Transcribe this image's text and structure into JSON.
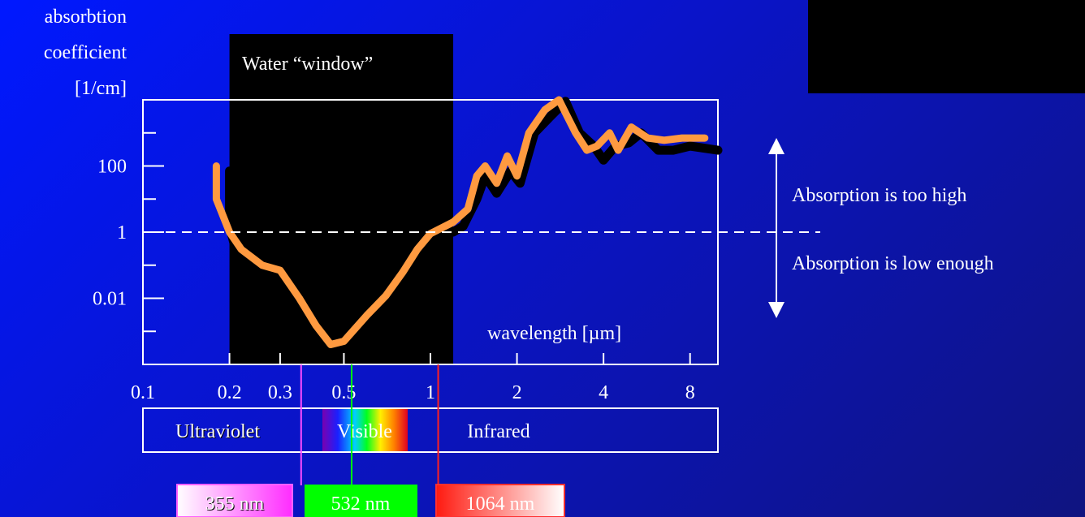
{
  "chart_data": {
    "type": "line",
    "ylabel_lines": [
      "absorbtion",
      "coefficient",
      "[1/cm]"
    ],
    "xlabel": "wavelength [µm]",
    "x_scale": "log",
    "y_scale": "log",
    "xlim": [
      0.1,
      10
    ],
    "ylim": [
      0.0001,
      10000
    ],
    "x_tick_labels": [
      {
        "value": 0.1,
        "label": "0.1"
      },
      {
        "value": 0.2,
        "label": "0.2"
      },
      {
        "value": 0.3,
        "label": "0.3"
      },
      {
        "value": 0.5,
        "label": "0.5"
      },
      {
        "value": 1,
        "label": "1"
      },
      {
        "value": 2,
        "label": "2"
      },
      {
        "value": 4,
        "label": "4"
      },
      {
        "value": 8,
        "label": "8"
      }
    ],
    "y_tick_labels": [
      {
        "value": 100,
        "label": "100"
      },
      {
        "value": 1,
        "label": "1"
      },
      {
        "value": 0.01,
        "label": "0.01"
      }
    ],
    "y_minor_ticks": [
      1000,
      10,
      0.1,
      0.001
    ],
    "threshold_y": 1,
    "window": {
      "label": "Water “window”",
      "x_start": 0.2,
      "x_end": 1.2
    },
    "series": [
      {
        "color": "#000000",
        "x": [
          0.2,
          0.2,
          0.21,
          0.25,
          0.3,
          0.35,
          0.4,
          0.45,
          0.5,
          0.6,
          0.7,
          0.8,
          0.9,
          1.0,
          1.2,
          1.3,
          1.45,
          1.55,
          1.7,
          1.9,
          2.05,
          2.3,
          2.6,
          2.95,
          3.3,
          3.7,
          4.0,
          4.4,
          4.9,
          5.4,
          6.2,
          7.0,
          8.0,
          10.0
        ],
        "y": [
          70,
          1.5,
          0.3,
          0.2,
          0.07,
          0.01,
          0.0015,
          0.0004,
          0.0005,
          0.003,
          0.012,
          0.06,
          0.3,
          0.9,
          1.0,
          1.5,
          10,
          50,
          15,
          70,
          30,
          1000,
          3000,
          9000,
          1000,
          400,
          150,
          400,
          500,
          1000,
          300,
          300,
          400,
          300
        ]
      },
      {
        "color": "#ff9a40",
        "x": [
          0.18,
          0.18,
          0.2,
          0.22,
          0.26,
          0.3,
          0.35,
          0.4,
          0.45,
          0.5,
          0.6,
          0.7,
          0.8,
          0.9,
          1.0,
          1.2,
          1.35,
          1.45,
          1.55,
          1.7,
          1.85,
          2.0,
          2.2,
          2.5,
          2.8,
          3.0,
          3.2,
          3.5,
          3.8,
          4.2,
          4.5,
          5.0,
          5.7,
          6.5,
          7.5,
          9.0
        ],
        "y": [
          100,
          10,
          1,
          0.3,
          0.1,
          0.07,
          0.01,
          0.0015,
          0.0004,
          0.0005,
          0.003,
          0.012,
          0.06,
          0.3,
          0.9,
          2,
          5,
          50,
          100,
          30,
          200,
          50,
          1000,
          5000,
          10000,
          3000,
          1000,
          300,
          400,
          1000,
          300,
          1500,
          700,
          600,
          700,
          700
        ]
      }
    ],
    "annotations": {
      "above": "Absorption is too high",
      "below": "Absorption is low enough"
    },
    "bands": [
      {
        "label": "Ultraviolet"
      },
      {
        "label": "Visible"
      },
      {
        "label": "Infrared"
      }
    ],
    "laser_lines": [
      {
        "value_um": 0.355,
        "label": "355 nm",
        "color": "#ff4cff"
      },
      {
        "value_um": 0.532,
        "label": "532 nm",
        "color": "#00ff00"
      },
      {
        "value_um": 1.064,
        "label": "1064 nm",
        "color": "#ff2020"
      }
    ]
  }
}
